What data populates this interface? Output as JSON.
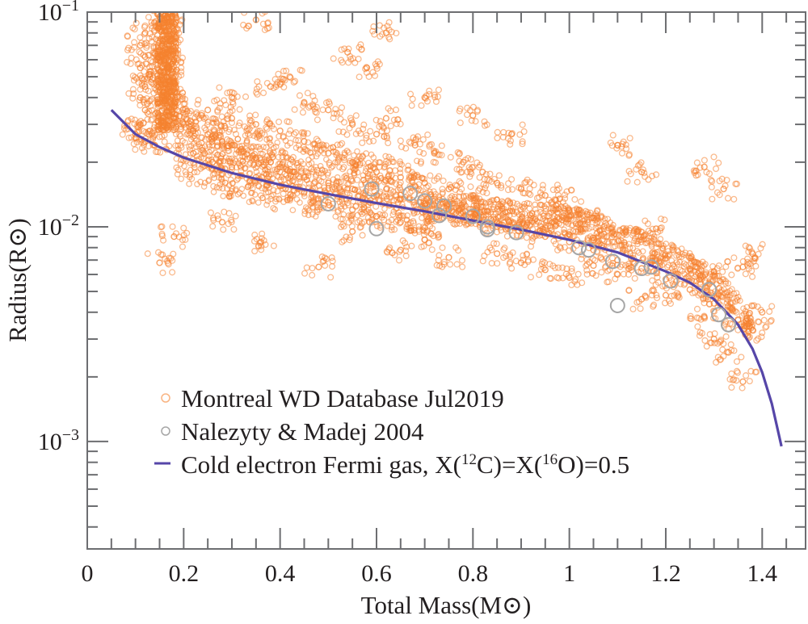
{
  "chart_data": {
    "type": "scatter",
    "title": "",
    "xlabel": "Total Mass(M⊙)",
    "ylabel": "Radius(R⊙)",
    "xscale": "linear",
    "yscale": "log",
    "xlim": [
      0,
      1.49
    ],
    "ylim": [
      0.000316,
      0.1
    ],
    "x_ticks": [
      {
        "value": 0,
        "label": "0"
      },
      {
        "value": 0.2,
        "label": "0.2"
      },
      {
        "value": 0.4,
        "label": "0.4"
      },
      {
        "value": 0.6,
        "label": "0.6"
      },
      {
        "value": 0.8,
        "label": "0.8"
      },
      {
        "value": 1.0,
        "label": "1"
      },
      {
        "value": 1.2,
        "label": "1.2"
      },
      {
        "value": 1.4,
        "label": "1.4"
      }
    ],
    "x_minor_step": 0.05,
    "y_ticks": [
      {
        "value": 0.1,
        "base": "10",
        "exp": "−1"
      },
      {
        "value": 0.01,
        "base": "10",
        "exp": "−2"
      },
      {
        "value": 0.001,
        "base": "10",
        "exp": "−3"
      }
    ],
    "grid": false,
    "legend": {
      "position": "bottom-left",
      "entries": [
        {
          "label": "Montreal WD Database Jul2019",
          "marker": "circle",
          "color": "#f5822f"
        },
        {
          "label": "Nalezyty & Madej 2004",
          "marker": "circle",
          "color": "#a6a6a6"
        },
        {
          "label_parts": [
            "Cold electron Fermi gas, X(",
            "12",
            "C)=X(",
            "16",
            "O)=0.5"
          ],
          "marker": "line",
          "color": "#5646a8"
        }
      ]
    },
    "series": [
      {
        "name": "Montreal WD Database Jul2019",
        "kind": "scatter",
        "color": "#f5822f",
        "note": "dense cloud of several thousand objects; representative sample below",
        "points": [
          [
            0.15,
            0.095
          ],
          [
            0.16,
            0.085
          ],
          [
            0.17,
            0.09
          ],
          [
            0.16,
            0.075
          ],
          [
            0.17,
            0.07
          ],
          [
            0.165,
            0.065
          ],
          [
            0.16,
            0.06
          ],
          [
            0.17,
            0.055
          ],
          [
            0.165,
            0.05
          ],
          [
            0.17,
            0.045
          ],
          [
            0.175,
            0.04
          ],
          [
            0.18,
            0.036
          ],
          [
            0.18,
            0.032
          ],
          [
            0.12,
            0.08
          ],
          [
            0.11,
            0.07
          ],
          [
            0.12,
            0.062
          ],
          [
            0.11,
            0.055
          ],
          [
            0.13,
            0.05
          ],
          [
            0.12,
            0.045
          ],
          [
            0.11,
            0.04
          ],
          [
            0.12,
            0.035
          ],
          [
            0.11,
            0.03
          ],
          [
            0.13,
            0.028
          ],
          [
            0.12,
            0.025
          ],
          [
            0.14,
            0.024
          ],
          [
            0.1,
            0.027
          ],
          [
            0.2,
            0.03
          ],
          [
            0.22,
            0.028
          ],
          [
            0.25,
            0.027
          ],
          [
            0.28,
            0.025
          ],
          [
            0.3,
            0.024
          ],
          [
            0.32,
            0.023
          ],
          [
            0.35,
            0.021
          ],
          [
            0.38,
            0.02
          ],
          [
            0.4,
            0.019
          ],
          [
            0.43,
            0.018
          ],
          [
            0.45,
            0.017
          ],
          [
            0.5,
            0.016
          ],
          [
            0.55,
            0.015
          ],
          [
            0.6,
            0.014
          ],
          [
            0.65,
            0.0135
          ],
          [
            0.7,
            0.0128
          ],
          [
            0.75,
            0.012
          ],
          [
            0.8,
            0.0112
          ],
          [
            0.85,
            0.0104
          ],
          [
            0.9,
            0.0098
          ],
          [
            0.95,
            0.009
          ],
          [
            1.0,
            0.0085
          ],
          [
            1.05,
            0.0078
          ],
          [
            1.1,
            0.007
          ],
          [
            1.15,
            0.0064
          ],
          [
            1.2,
            0.0057
          ],
          [
            1.25,
            0.0051
          ],
          [
            1.3,
            0.0044
          ],
          [
            1.35,
            0.0037
          ],
          [
            1.38,
            0.0033
          ],
          [
            0.22,
            0.022
          ],
          [
            0.26,
            0.02
          ],
          [
            0.3,
            0.019
          ],
          [
            0.35,
            0.017
          ],
          [
            0.4,
            0.0155
          ],
          [
            0.45,
            0.0145
          ],
          [
            0.5,
            0.013
          ],
          [
            0.55,
            0.012
          ],
          [
            0.6,
            0.0112
          ],
          [
            0.65,
            0.0105
          ],
          [
            0.7,
            0.0099
          ],
          [
            0.25,
            0.035
          ],
          [
            0.3,
            0.032
          ],
          [
            0.35,
            0.03
          ],
          [
            0.4,
            0.028
          ],
          [
            0.45,
            0.025
          ],
          [
            0.5,
            0.022
          ],
          [
            0.55,
            0.02
          ],
          [
            0.6,
            0.018
          ],
          [
            0.65,
            0.017
          ],
          [
            0.7,
            0.016
          ],
          [
            0.75,
            0.015
          ],
          [
            0.8,
            0.014
          ],
          [
            0.3,
            0.04
          ],
          [
            0.38,
            0.045
          ],
          [
            0.42,
            0.05
          ],
          [
            0.45,
            0.038
          ],
          [
            0.5,
            0.035
          ],
          [
            0.55,
            0.03
          ],
          [
            0.6,
            0.027
          ],
          [
            0.62,
            0.032
          ],
          [
            0.68,
            0.024
          ],
          [
            0.72,
            0.022
          ],
          [
            0.78,
            0.02
          ],
          [
            0.82,
            0.018
          ],
          [
            0.85,
            0.016
          ],
          [
            0.9,
            0.015
          ],
          [
            0.95,
            0.014
          ],
          [
            1.0,
            0.012
          ],
          [
            0.18,
            0.009
          ],
          [
            0.15,
            0.0068
          ],
          [
            0.28,
            0.0105
          ],
          [
            0.36,
            0.0085
          ],
          [
            0.48,
            0.0065
          ],
          [
            0.55,
            0.0095
          ],
          [
            0.65,
            0.0078
          ],
          [
            0.7,
            0.0087
          ],
          [
            0.75,
            0.0072
          ],
          [
            0.85,
            0.0075
          ],
          [
            0.9,
            0.0068
          ],
          [
            0.95,
            0.0063
          ],
          [
            1.0,
            0.0058
          ],
          [
            1.05,
            0.0066
          ],
          [
            1.1,
            0.006
          ],
          [
            1.15,
            0.0046
          ],
          [
            1.2,
            0.0048
          ],
          [
            1.28,
            0.0038
          ],
          [
            1.3,
            0.003
          ],
          [
            1.33,
            0.0026
          ],
          [
            1.36,
            0.0019
          ],
          [
            0.35,
            0.092
          ],
          [
            0.54,
            0.065
          ],
          [
            0.62,
            0.08
          ],
          [
            0.58,
            0.055
          ],
          [
            0.7,
            0.04
          ],
          [
            0.8,
            0.033
          ],
          [
            0.88,
            0.027
          ],
          [
            1.1,
            0.024
          ],
          [
            1.15,
            0.018
          ],
          [
            1.28,
            0.019
          ],
          [
            1.32,
            0.015
          ],
          [
            1.36,
            0.0065
          ],
          [
            1.38,
            0.0075
          ],
          [
            1.4,
            0.004
          ],
          [
            1.3,
            0.0062
          ],
          [
            1.18,
            0.0098
          ],
          [
            1.05,
            0.011
          ],
          [
            0.98,
            0.0135
          ]
        ]
      },
      {
        "name": "Nalezyty & Madej 2004",
        "kind": "scatter",
        "color": "#a6a6a6",
        "points": [
          [
            0.5,
            0.0128
          ],
          [
            0.59,
            0.015
          ],
          [
            0.67,
            0.0143
          ],
          [
            0.7,
            0.0132
          ],
          [
            0.74,
            0.0125
          ],
          [
            0.73,
            0.0113
          ],
          [
            0.6,
            0.0098
          ],
          [
            0.8,
            0.0112
          ],
          [
            0.83,
            0.01
          ],
          [
            0.83,
            0.0097
          ],
          [
            0.89,
            0.0094
          ],
          [
            1.02,
            0.008
          ],
          [
            1.04,
            0.0078
          ],
          [
            1.09,
            0.0069
          ],
          [
            1.15,
            0.0064
          ],
          [
            1.17,
            0.0065
          ],
          [
            1.21,
            0.0056
          ],
          [
            1.1,
            0.0043
          ],
          [
            1.29,
            0.0051
          ],
          [
            1.31,
            0.0039
          ],
          [
            1.33,
            0.0035
          ]
        ]
      },
      {
        "name": "Cold electron Fermi gas, X(12C)=X(16O)=0.5",
        "kind": "line",
        "color": "#5646a8",
        "points": [
          [
            0.05,
            0.035
          ],
          [
            0.1,
            0.027
          ],
          [
            0.15,
            0.0235
          ],
          [
            0.2,
            0.021
          ],
          [
            0.3,
            0.0178
          ],
          [
            0.4,
            0.0157
          ],
          [
            0.5,
            0.0142
          ],
          [
            0.6,
            0.0129
          ],
          [
            0.7,
            0.0118
          ],
          [
            0.8,
            0.0107
          ],
          [
            0.9,
            0.0097
          ],
          [
            1.0,
            0.0087
          ],
          [
            1.1,
            0.0076
          ],
          [
            1.2,
            0.0062
          ],
          [
            1.25,
            0.0055
          ],
          [
            1.3,
            0.0046
          ],
          [
            1.35,
            0.0035
          ],
          [
            1.38,
            0.0027
          ],
          [
            1.4,
            0.0021
          ],
          [
            1.42,
            0.0015
          ],
          [
            1.44,
            0.00095
          ]
        ]
      }
    ]
  }
}
